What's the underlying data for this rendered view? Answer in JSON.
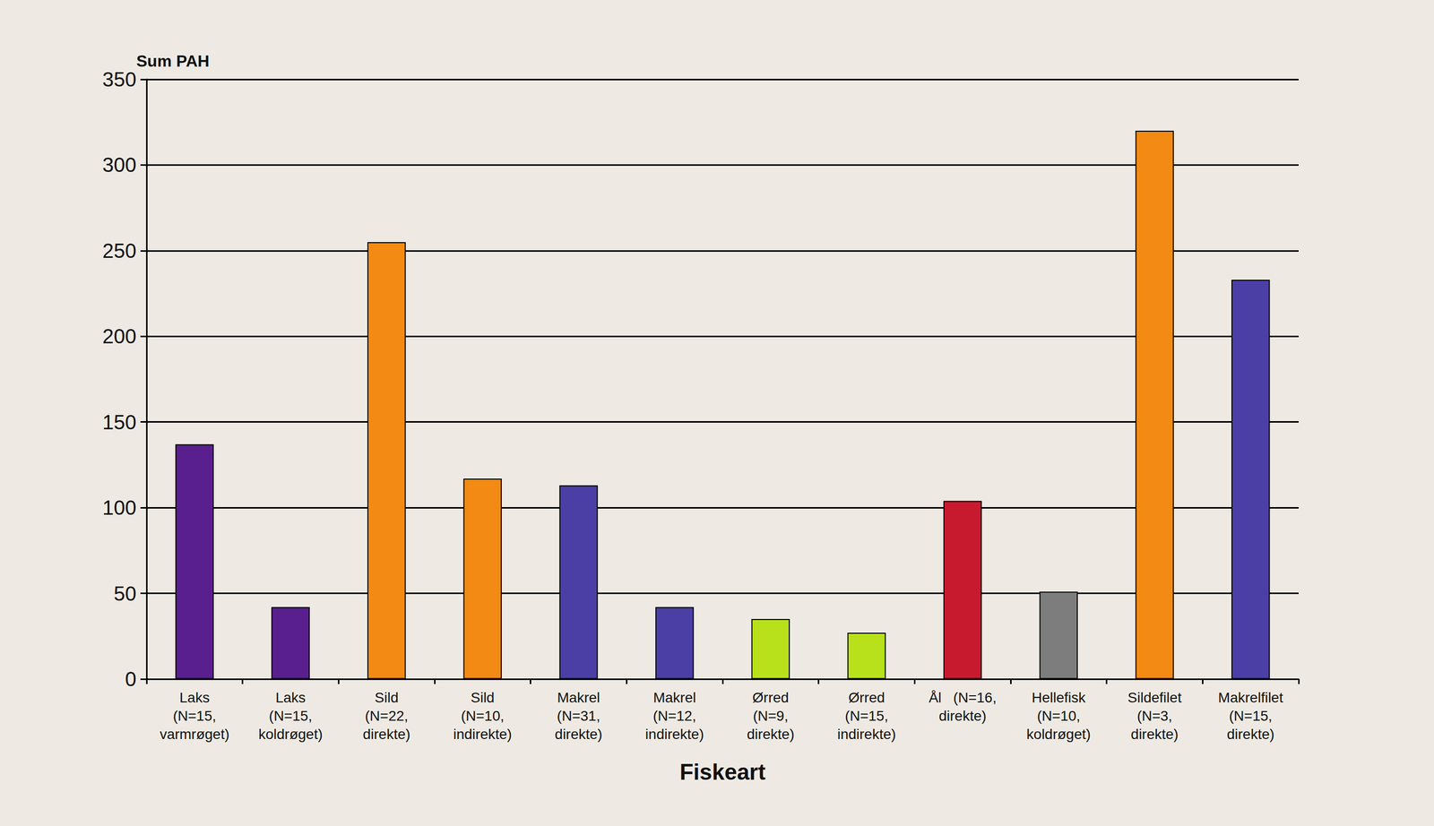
{
  "chart_data": {
    "type": "bar",
    "y_label": "Sum PAH",
    "x_label": "Fiskeart",
    "categories": [
      "Laks\n(N=15,\nvarmrøget)",
      "Laks\n(N=15,\nkoldrøget)",
      "Sild\n(N=22,\ndirekte)",
      "Sild\n(N=10,\nindirekte)",
      "Makrel\n(N=31,\ndirekte)",
      "Makrel\n(N=12,\nindirekte)",
      "Ørred\n(N=9,\ndirekte)",
      "Ørred\n(N=15,\nindirekte)",
      "Ål   (N=16,\ndirekte)",
      "Hellefisk\n(N=10,\nkoldrøget)",
      "Sildefilet\n(N=3,\ndirekte)",
      "Makrelfilet\n(N=15,\ndirekte)"
    ],
    "values": [
      137,
      42,
      255,
      117,
      113,
      42,
      35,
      27,
      104,
      51,
      320,
      233
    ],
    "colors": [
      "#5a1f8e",
      "#5a1f8e",
      "#f28a13",
      "#f28a13",
      "#4b3fa6",
      "#4b3fa6",
      "#b8e11c",
      "#b8e11c",
      "#c81a2f",
      "#7d7d7d",
      "#f28a13",
      "#4b3fa6"
    ],
    "ylim": [
      0,
      350
    ],
    "yticks": [
      0,
      50,
      100,
      150,
      200,
      250,
      300,
      350
    ],
    "grid": true
  }
}
